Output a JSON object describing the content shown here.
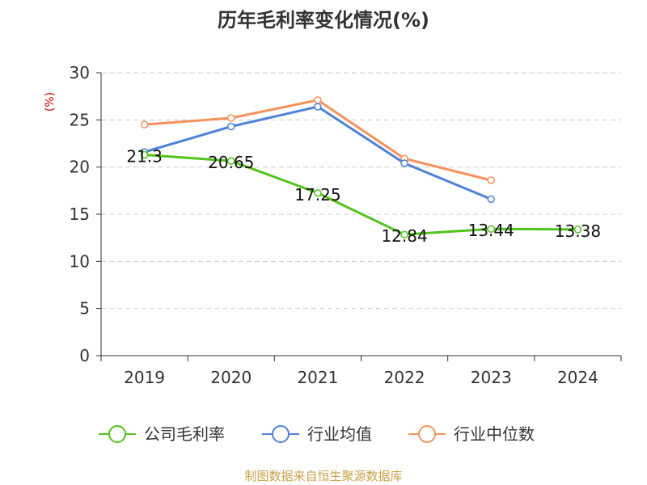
{
  "chart_data": {
    "type": "line",
    "title": "历年毛利率变化情况(%)",
    "y_unit": "(%)",
    "categories": [
      "2019",
      "2020",
      "2021",
      "2022",
      "2023",
      "2024"
    ],
    "ylim": [
      0,
      30
    ],
    "yticks": [
      0,
      5,
      10,
      15,
      20,
      25,
      30
    ],
    "grid": true,
    "legend_position": "bottom",
    "series": [
      {
        "name": "公司毛利率",
        "color": "#52c41a",
        "values": [
          21.3,
          20.65,
          17.25,
          12.84,
          13.44,
          13.38
        ],
        "labels": [
          "21.3",
          "20.65",
          "17.25",
          "12.84",
          "13.44",
          "13.38"
        ]
      },
      {
        "name": "行业均值",
        "color": "#4f81d9",
        "values": [
          21.6,
          24.3,
          26.4,
          20.4,
          16.6,
          null
        ]
      },
      {
        "name": "行业中位数",
        "color": "#f4925c",
        "values": [
          24.5,
          25.2,
          27.1,
          20.9,
          18.6,
          null
        ]
      }
    ]
  },
  "source": "制图数据来自恒生聚源数据库"
}
